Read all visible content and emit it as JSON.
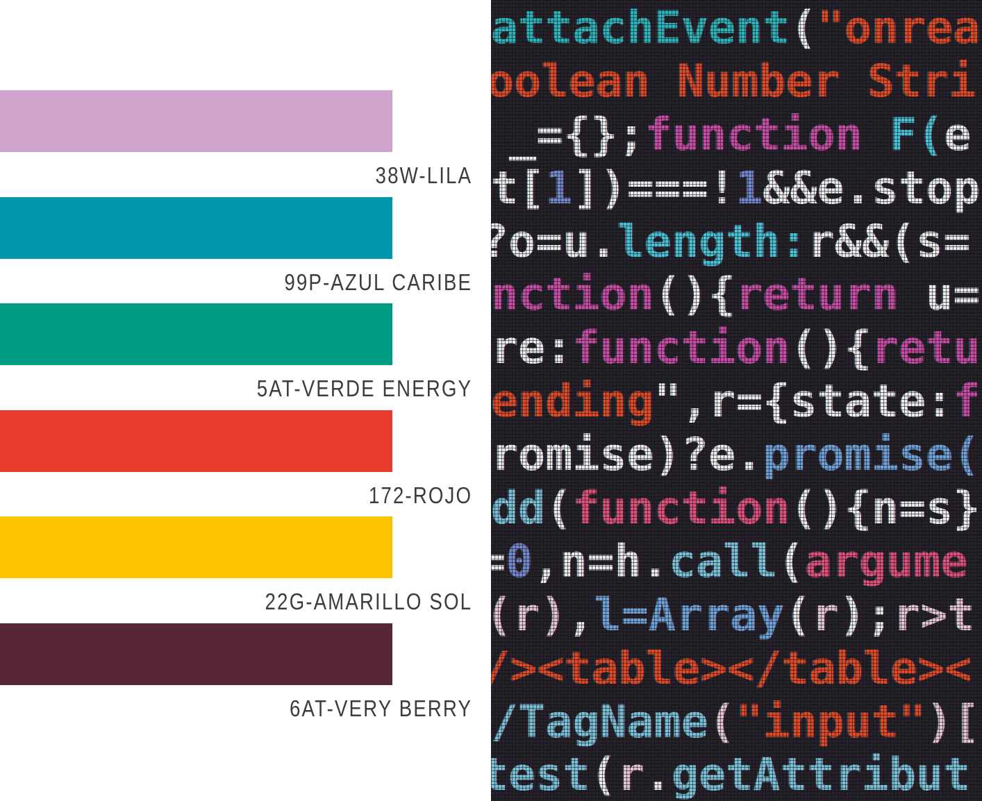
{
  "palette": {
    "items": [
      {
        "code": "38W-LILA",
        "color": "#cfa5cd"
      },
      {
        "code": "99P-AZUL CARIBE",
        "color": "#0097ab"
      },
      {
        "code": "5AT-VERDE ENERGY",
        "color": "#009b82"
      },
      {
        "code": "172-ROJO",
        "color": "#e63b2d"
      },
      {
        "code": "22G-AMARILLO SOL",
        "color": "#fcc400"
      },
      {
        "code": "6AT-VERY BERRY",
        "color": "#572639"
      }
    ],
    "label_color": "#3c3c3c"
  },
  "code_panel": {
    "background": "#25222a",
    "colors": {
      "teal": "#2cb5bb",
      "cyan": "#49c3d6",
      "white": "#e9ecea",
      "orange": "#e14b25",
      "magenta": "#c84da5",
      "rose": "#e0517c",
      "steel": "#6fa2d6",
      "lightblue": "#7bc2d8",
      "indigo": "#7488cc",
      "pale": "#e3c6d2"
    },
    "lines": [
      {
        "indent": 0,
        "segments": [
          {
            "t": "attachEvent",
            "c": "teal"
          },
          {
            "t": "(",
            "c": "white"
          },
          {
            "t": "\"onrea",
            "c": "orange"
          }
        ]
      },
      {
        "indent": -6,
        "segments": [
          {
            "t": "oolean Number Stri",
            "c": "orange"
          }
        ]
      },
      {
        "indent": 26,
        "segments": [
          {
            "t": "_={};",
            "c": "white"
          },
          {
            "t": "function",
            "c": "magenta"
          },
          {
            "t": " ",
            "c": "white"
          },
          {
            "t": "F(",
            "c": "cyan"
          },
          {
            "t": "e",
            "c": "white"
          }
        ]
      },
      {
        "indent": 0,
        "segments": [
          {
            "t": "t[",
            "c": "white"
          },
          {
            "t": "1",
            "c": "indigo"
          },
          {
            "t": "])===!",
            "c": "white"
          },
          {
            "t": "1",
            "c": "indigo"
          },
          {
            "t": "&&e.stop",
            "c": "white"
          }
        ]
      },
      {
        "indent": -14,
        "segments": [
          {
            "t": "?o=u.",
            "c": "white"
          },
          {
            "t": "length:",
            "c": "cyan"
          },
          {
            "t": "r&&(s=",
            "c": "white"
          }
        ]
      },
      {
        "indent": 0,
        "segments": [
          {
            "t": "nction",
            "c": "magenta"
          },
          {
            "t": "(){",
            "c": "white"
          },
          {
            "t": "return",
            "c": "magenta"
          },
          {
            "t": " u=",
            "c": "white"
          }
        ]
      },
      {
        "indent": 0,
        "segments": [
          {
            "t": "re:",
            "c": "white"
          },
          {
            "t": "function",
            "c": "magenta"
          },
          {
            "t": "(){",
            "c": "white"
          },
          {
            "t": "retu",
            "c": "magenta"
          }
        ]
      },
      {
        "indent": 0,
        "segments": [
          {
            "t": "ending",
            "c": "orange"
          },
          {
            "t": "\",r={state:",
            "c": "white"
          },
          {
            "t": "f",
            "c": "magenta"
          }
        ]
      },
      {
        "indent": 0,
        "segments": [
          {
            "t": "romise)?e.",
            "c": "white"
          },
          {
            "t": "promise(",
            "c": "steel"
          }
        ]
      },
      {
        "indent": 0,
        "segments": [
          {
            "t": "dd",
            "c": "lightblue"
          },
          {
            "t": "(",
            "c": "white"
          },
          {
            "t": "function",
            "c": "rose"
          },
          {
            "t": "(){n=s}",
            "c": "white"
          }
        ]
      },
      {
        "indent": -18,
        "segments": [
          {
            "t": "=",
            "c": "white"
          },
          {
            "t": "0",
            "c": "indigo"
          },
          {
            "t": ",n=h.",
            "c": "white"
          },
          {
            "t": "call",
            "c": "lightblue"
          },
          {
            "t": "(",
            "c": "white"
          },
          {
            "t": "argume",
            "c": "rose"
          }
        ]
      },
      {
        "indent": -8,
        "segments": [
          {
            "t": "(r)",
            "c": "pale"
          },
          {
            "t": ",",
            "c": "white"
          },
          {
            "t": "l=Array",
            "c": "steel"
          },
          {
            "t": "(",
            "c": "white"
          },
          {
            "t": "r",
            "c": "pale"
          },
          {
            "t": ");",
            "c": "white"
          },
          {
            "t": "r>t",
            "c": "pale"
          }
        ]
      },
      {
        "indent": -12,
        "segments": [
          {
            "t": "/><table></table><",
            "c": "orange"
          }
        ]
      },
      {
        "indent": 0,
        "segments": [
          {
            "t": "/TagName",
            "c": "lightblue"
          },
          {
            "t": "(",
            "c": "pale"
          },
          {
            "t": "\"input\"",
            "c": "orange"
          },
          {
            "t": ")[",
            "c": "pale"
          }
        ]
      },
      {
        "indent": -14,
        "segments": [
          {
            "t": "test",
            "c": "lightblue"
          },
          {
            "t": "(",
            "c": "white"
          },
          {
            "t": "r",
            "c": "pale"
          },
          {
            "t": ".",
            "c": "white"
          },
          {
            "t": "getAttribut",
            "c": "lightblue"
          }
        ]
      }
    ]
  }
}
